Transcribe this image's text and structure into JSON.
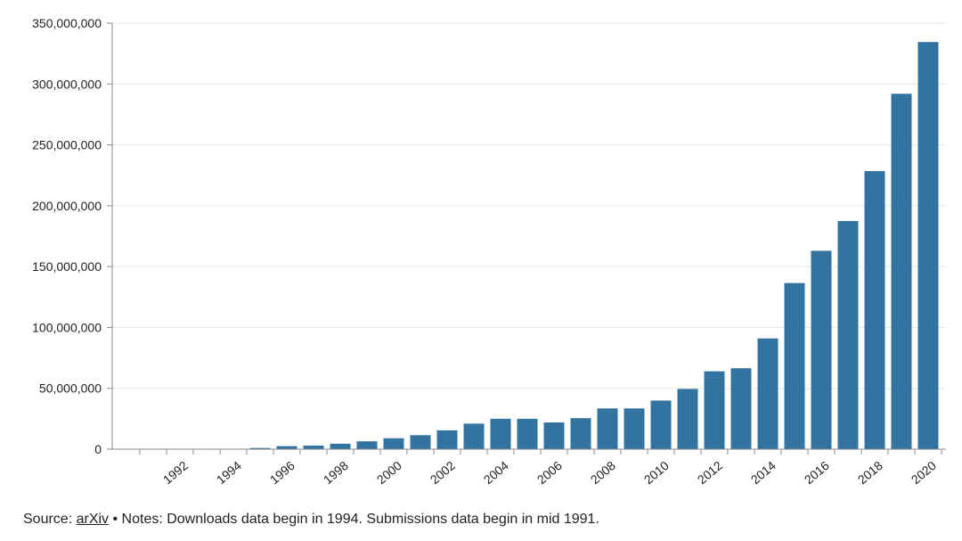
{
  "chart_data": {
    "type": "bar",
    "categories": [
      "1991",
      "1992",
      "1993",
      "1994",
      "1995",
      "1996",
      "1997",
      "1998",
      "1999",
      "2000",
      "2001",
      "2002",
      "2003",
      "2004",
      "2005",
      "2006",
      "2007",
      "2008",
      "2009",
      "2010",
      "2011",
      "2012",
      "2013",
      "2014",
      "2015",
      "2016",
      "2017",
      "2018",
      "2019",
      "2020"
    ],
    "x_tick_labels": [
      "1992",
      "1994",
      "1996",
      "1998",
      "2000",
      "2002",
      "2004",
      "2006",
      "2008",
      "2010",
      "2012",
      "2014",
      "2016",
      "2018",
      "2020"
    ],
    "values": [
      0,
      0,
      0,
      0,
      1000000,
      2500000,
      3000000,
      4500000,
      6500000,
      9000000,
      11500000,
      15500000,
      21000000,
      25000000,
      25000000,
      22000000,
      25500000,
      33500000,
      33500000,
      40000000,
      49500000,
      64000000,
      66500000,
      91000000,
      136500000,
      163000000,
      187500000,
      228500000,
      292000000,
      334500000
    ],
    "y_tick_labels": [
      "0",
      "50,000,000",
      "100,000,000",
      "150,000,000",
      "200,000,000",
      "250,000,000",
      "300,000,000",
      "350,000,000"
    ],
    "ylim": [
      0,
      350000000
    ],
    "grid": true,
    "bar_color": "#33739f",
    "title": "",
    "xlabel": "",
    "ylabel": ""
  },
  "footer": {
    "source_prefix": "Source: ",
    "source_link": "arXiv",
    "notes": " • Notes: Downloads data begin in 1994. Submissions data begin in mid 1991."
  }
}
